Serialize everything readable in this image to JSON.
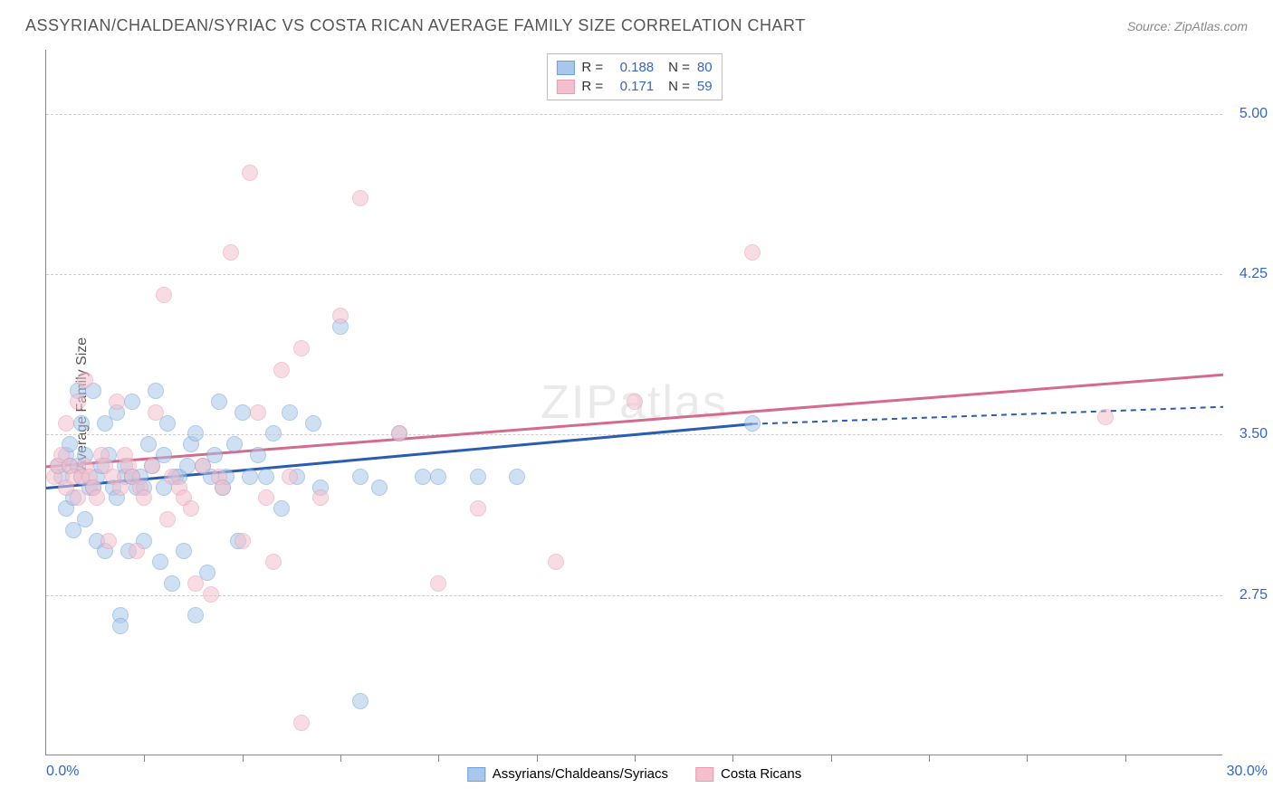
{
  "title": "ASSYRIAN/CHALDEAN/SYRIAC VS COSTA RICAN AVERAGE FAMILY SIZE CORRELATION CHART",
  "source": "Source: ZipAtlas.com",
  "watermark": "ZIPatlas",
  "ylabel": "Average Family Size",
  "chart": {
    "type": "scatter",
    "xlim": [
      0,
      30
    ],
    "ylim": [
      2.0,
      5.3
    ],
    "x_tick_step": 2.5,
    "y_ticks": [
      2.75,
      3.5,
      4.25,
      5.0
    ],
    "x_label_min": "0.0%",
    "x_label_max": "30.0%",
    "grid_color": "#cccccc",
    "background_color": "#ffffff",
    "axis_color": "#888888",
    "point_radius": 9,
    "point_opacity": 0.55,
    "series": [
      {
        "name": "Assyrians/Chaldeans/Syriacs",
        "fill": "#a9c7ea",
        "stroke": "#6f9fd8",
        "trend_color": "#2a5db0",
        "dash_color": "#2a5db0",
        "R": "0.188",
        "N": "80",
        "trend": {
          "x1": 0,
          "y1": 3.25,
          "x2": 18,
          "y2": 3.55,
          "x_dash_end": 30,
          "y_dash_end": 3.63
        },
        "points": [
          [
            0.3,
            3.35
          ],
          [
            0.4,
            3.3
          ],
          [
            0.5,
            3.4
          ],
          [
            0.5,
            3.15
          ],
          [
            0.6,
            3.35
          ],
          [
            0.6,
            3.45
          ],
          [
            0.7,
            3.2
          ],
          [
            0.7,
            3.05
          ],
          [
            0.8,
            3.35
          ],
          [
            0.8,
            3.7
          ],
          [
            0.9,
            3.3
          ],
          [
            0.9,
            3.55
          ],
          [
            1.0,
            3.4
          ],
          [
            1.0,
            3.1
          ],
          [
            1.1,
            3.25
          ],
          [
            1.2,
            3.7
          ],
          [
            1.2,
            3.25
          ],
          [
            1.3,
            3.0
          ],
          [
            1.3,
            3.3
          ],
          [
            1.4,
            3.35
          ],
          [
            1.5,
            3.55
          ],
          [
            1.5,
            2.95
          ],
          [
            1.6,
            3.4
          ],
          [
            1.7,
            3.25
          ],
          [
            1.8,
            3.6
          ],
          [
            1.8,
            3.2
          ],
          [
            1.9,
            2.65
          ],
          [
            1.9,
            2.6
          ],
          [
            2.0,
            3.35
          ],
          [
            2.0,
            3.3
          ],
          [
            2.1,
            2.95
          ],
          [
            2.2,
            3.3
          ],
          [
            2.2,
            3.65
          ],
          [
            2.3,
            3.25
          ],
          [
            2.4,
            3.3
          ],
          [
            2.5,
            3.0
          ],
          [
            2.5,
            3.25
          ],
          [
            2.6,
            3.45
          ],
          [
            2.7,
            3.35
          ],
          [
            2.8,
            3.7
          ],
          [
            2.9,
            2.9
          ],
          [
            3.0,
            3.4
          ],
          [
            3.0,
            3.25
          ],
          [
            3.1,
            3.55
          ],
          [
            3.2,
            2.8
          ],
          [
            3.3,
            3.3
          ],
          [
            3.4,
            3.3
          ],
          [
            3.5,
            2.95
          ],
          [
            3.6,
            3.35
          ],
          [
            3.7,
            3.45
          ],
          [
            3.8,
            3.5
          ],
          [
            3.8,
            2.65
          ],
          [
            4.0,
            3.35
          ],
          [
            4.1,
            2.85
          ],
          [
            4.2,
            3.3
          ],
          [
            4.3,
            3.4
          ],
          [
            4.4,
            3.65
          ],
          [
            4.5,
            3.25
          ],
          [
            4.6,
            3.3
          ],
          [
            4.8,
            3.45
          ],
          [
            4.9,
            3.0
          ],
          [
            5.0,
            3.6
          ],
          [
            5.2,
            3.3
          ],
          [
            5.4,
            3.4
          ],
          [
            5.6,
            3.3
          ],
          [
            5.8,
            3.5
          ],
          [
            6.0,
            3.15
          ],
          [
            6.2,
            3.6
          ],
          [
            6.4,
            3.3
          ],
          [
            6.8,
            3.55
          ],
          [
            7.0,
            3.25
          ],
          [
            7.5,
            4.0
          ],
          [
            8.0,
            3.3
          ],
          [
            8.5,
            3.25
          ],
          [
            9.0,
            3.5
          ],
          [
            9.6,
            3.3
          ],
          [
            10.0,
            3.3
          ],
          [
            11.0,
            3.3
          ],
          [
            12.0,
            3.3
          ],
          [
            18.0,
            3.55
          ]
        ]
      },
      {
        "name": "Costa Ricans",
        "fill": "#f4c0cd",
        "stroke": "#e89bb0",
        "trend_color": "#d46a8c",
        "dash_color": "#d46a8c",
        "R": "0.171",
        "N": "59",
        "trend": {
          "x1": 0,
          "y1": 3.35,
          "x2": 30,
          "y2": 3.78,
          "x_dash_end": 30,
          "y_dash_end": 3.78
        },
        "points": [
          [
            0.2,
            3.3
          ],
          [
            0.3,
            3.35
          ],
          [
            0.4,
            3.4
          ],
          [
            0.5,
            3.25
          ],
          [
            0.5,
            3.55
          ],
          [
            0.6,
            3.35
          ],
          [
            0.7,
            3.3
          ],
          [
            0.8,
            3.65
          ],
          [
            0.8,
            3.2
          ],
          [
            0.9,
            3.3
          ],
          [
            1.0,
            3.35
          ],
          [
            1.0,
            3.75
          ],
          [
            1.1,
            3.3
          ],
          [
            1.2,
            3.25
          ],
          [
            1.3,
            3.2
          ],
          [
            1.4,
            3.4
          ],
          [
            1.5,
            3.35
          ],
          [
            1.6,
            3.0
          ],
          [
            1.7,
            3.3
          ],
          [
            1.8,
            3.65
          ],
          [
            1.9,
            3.25
          ],
          [
            2.0,
            3.4
          ],
          [
            2.1,
            3.35
          ],
          [
            2.2,
            3.3
          ],
          [
            2.3,
            2.95
          ],
          [
            2.4,
            3.25
          ],
          [
            2.5,
            3.2
          ],
          [
            2.7,
            3.35
          ],
          [
            2.8,
            3.6
          ],
          [
            3.0,
            4.15
          ],
          [
            3.1,
            3.1
          ],
          [
            3.2,
            3.3
          ],
          [
            3.4,
            3.25
          ],
          [
            3.5,
            3.2
          ],
          [
            3.7,
            3.15
          ],
          [
            3.8,
            2.8
          ],
          [
            4.0,
            3.35
          ],
          [
            4.2,
            2.75
          ],
          [
            4.4,
            3.3
          ],
          [
            4.5,
            3.25
          ],
          [
            4.7,
            4.35
          ],
          [
            5.0,
            3.0
          ],
          [
            5.2,
            4.72
          ],
          [
            5.4,
            3.6
          ],
          [
            5.6,
            3.2
          ],
          [
            5.8,
            2.9
          ],
          [
            6.0,
            3.8
          ],
          [
            6.2,
            3.3
          ],
          [
            6.5,
            3.9
          ],
          [
            7.0,
            3.2
          ],
          [
            7.5,
            4.05
          ],
          [
            8.0,
            4.6
          ],
          [
            9.0,
            3.5
          ],
          [
            10.0,
            2.8
          ],
          [
            11.0,
            3.15
          ],
          [
            13.0,
            2.9
          ],
          [
            15.0,
            3.65
          ],
          [
            18.0,
            4.35
          ],
          [
            27.0,
            3.58
          ]
        ]
      }
    ],
    "extra_points_blue": [
      [
        8.0,
        2.25
      ]
    ],
    "extra_points_pink": [
      [
        6.5,
        2.15
      ]
    ]
  }
}
